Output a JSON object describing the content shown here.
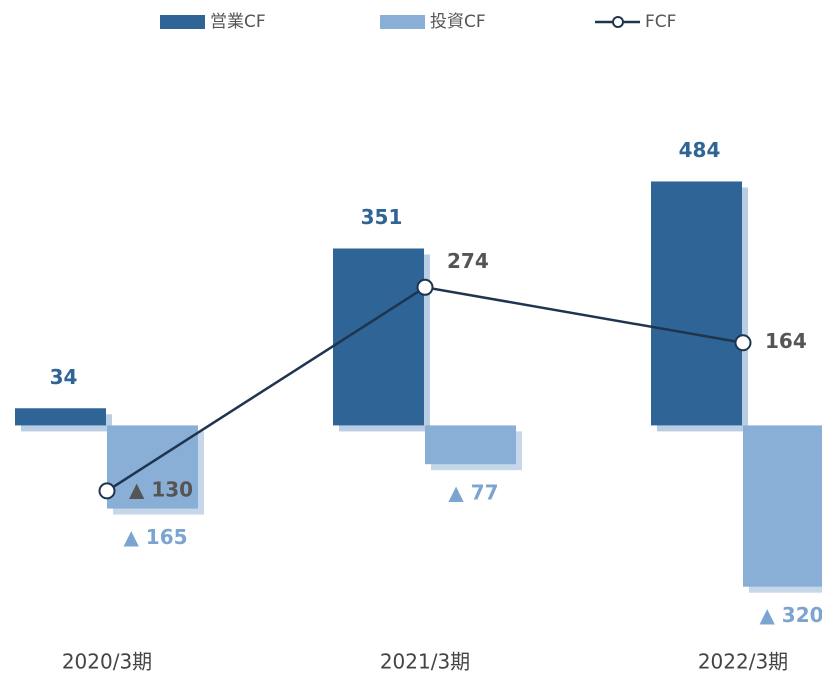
{
  "chart_data": {
    "type": "bar-line",
    "categories": [
      "2020/3期",
      "2021/3期",
      "2022/3期"
    ],
    "series": [
      {
        "name": "営業CF",
        "type": "bar",
        "color": "#2f6496",
        "values": [
          34,
          351,
          484
        ]
      },
      {
        "name": "投資CF",
        "type": "bar",
        "color": "#8aafd6",
        "values": [
          -165,
          -77,
          -320
        ],
        "value_labels": [
          "▲ 165",
          "▲ 77",
          "▲ 320"
        ]
      },
      {
        "name": "FCF",
        "type": "line",
        "color": "#1e3550",
        "values": [
          -130,
          274,
          164
        ],
        "value_labels": [
          "▲ 130",
          "274",
          "164"
        ]
      }
    ],
    "ylim": [
      -400,
      600
    ],
    "legend": "top"
  }
}
